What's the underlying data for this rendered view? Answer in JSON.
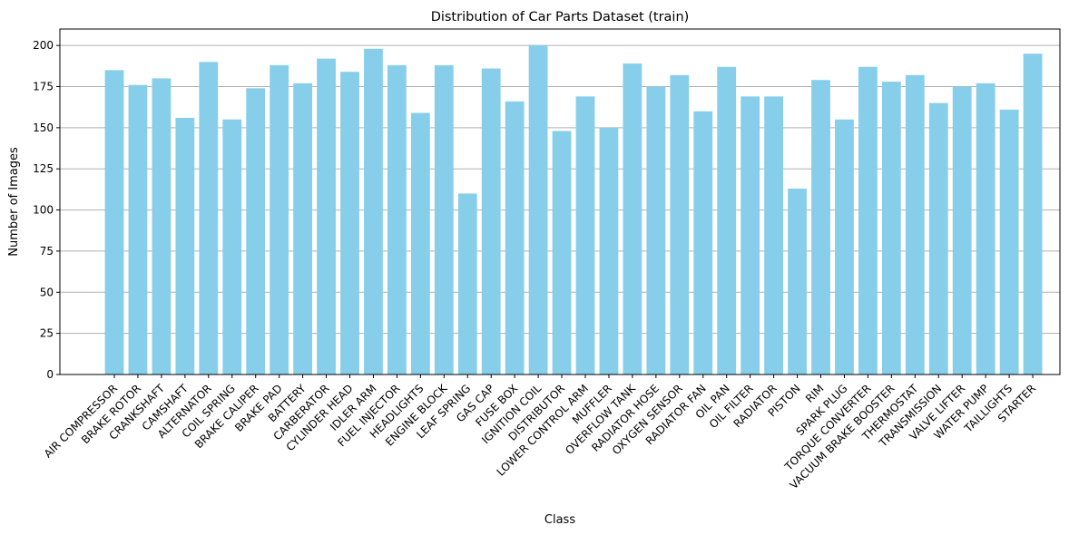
{
  "chart_data": {
    "type": "bar",
    "title": "Distribution of Car Parts Dataset (train)",
    "xlabel": "Class",
    "ylabel": "Number of Images",
    "ylim": [
      0,
      210
    ],
    "yticks": [
      0,
      25,
      50,
      75,
      100,
      125,
      150,
      175,
      200
    ],
    "grid": "horizontal",
    "bar_color": "#87ceeb",
    "categories": [
      "AIR COMPRESSOR",
      "BRAKE ROTOR",
      "CRANKSHAFT",
      "CAMSHAFT",
      "ALTERNATOR",
      "COIL SPRING",
      "BRAKE CALIPER",
      "BRAKE PAD",
      "BATTERY",
      "CARBERATOR",
      "CYLINDER HEAD",
      "IDLER ARM",
      "FUEL INJECTOR",
      "HEADLIGHTS",
      "ENGINE BLOCK",
      "LEAF SPRING",
      "GAS CAP",
      "FUSE BOX",
      "IGNITION COIL",
      "DISTRIBUTOR",
      "LOWER CONTROL ARM",
      "MUFFLER",
      "OVERFLOW TANK",
      "RADIATOR HOSE",
      "OXYGEN SENSOR",
      "RADIATOR FAN",
      "OIL PAN",
      "OIL FILTER",
      "RADIATOR",
      "PISTON",
      "RIM",
      "SPARK PLUG",
      "TORQUE CONVERTER",
      "VACUUM BRAKE BOOSTER",
      "THERMOSTAT",
      "TRANSMISSION",
      "VALVE LIFTER",
      "WATER PUMP",
      "TAILLIGHTS",
      "STARTER"
    ],
    "values": [
      185,
      176,
      180,
      156,
      190,
      155,
      174,
      188,
      177,
      192,
      184,
      198,
      188,
      159,
      188,
      110,
      186,
      166,
      200,
      148,
      169,
      150,
      189,
      175,
      182,
      160,
      187,
      169,
      169,
      113,
      179,
      155,
      187,
      178,
      182,
      165,
      175,
      177,
      161,
      195
    ]
  }
}
